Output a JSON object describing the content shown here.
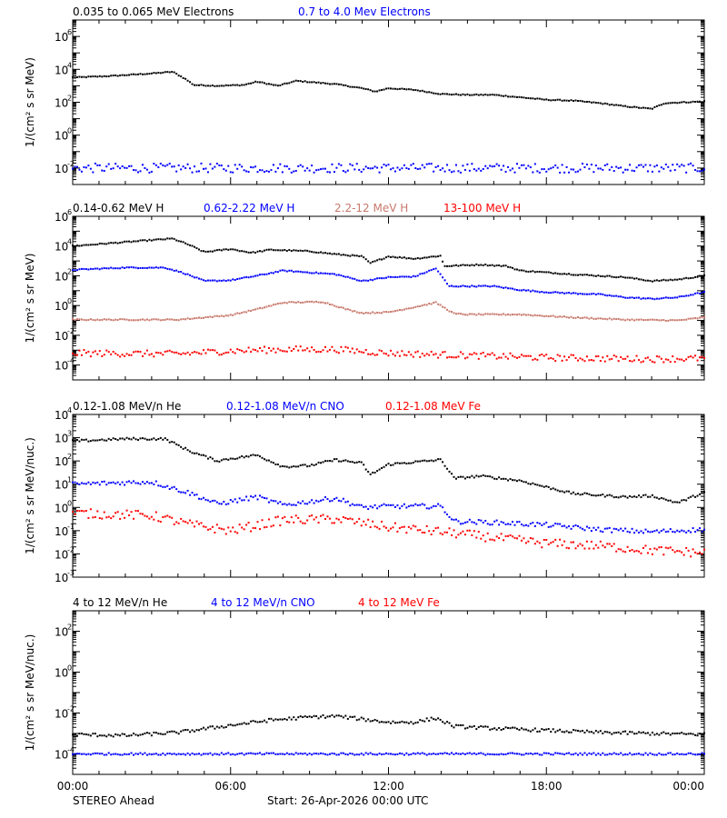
{
  "footer": {
    "spacecraft": "STEREO Ahead",
    "start": "Start: 26-Apr-2026 00:00 UTC"
  },
  "x_axis": {
    "range_hours": [
      0,
      24
    ],
    "ticks": [
      {
        "hour": 0,
        "label": "00:00"
      },
      {
        "hour": 6,
        "label": "06:00"
      },
      {
        "hour": 12,
        "label": "12:00"
      },
      {
        "hour": 18,
        "label": "18:00"
      },
      {
        "hour": 24,
        "label": "00:00"
      }
    ]
  },
  "colors": {
    "black": "#000000",
    "blue": "#0000ff",
    "tan": "#c8786c",
    "red": "#ff0000"
  },
  "chart_data": [
    {
      "type": "scatter",
      "ylabel": "1/(cm² s sr MeV)",
      "yscale": "log",
      "ylim_exp": [
        -3,
        7
      ],
      "tick_labels": [
        {
          "exp": 6,
          "label": "6"
        },
        {
          "exp": 4,
          "label": "4"
        },
        {
          "exp": 2,
          "label": "2"
        },
        {
          "exp": 0,
          "label": "0"
        },
        {
          "exp": -2,
          "label": "-2"
        }
      ],
      "series": [
        {
          "name": "0.035 to 0.065 MeV Electrons",
          "color": "#000000",
          "noise": 0.03,
          "points": [
            [
              0,
              3.5
            ],
            [
              1.5,
              3.6
            ],
            [
              3,
              3.75
            ],
            [
              3.8,
              3.85
            ],
            [
              4.3,
              3.4
            ],
            [
              4.6,
              3.05
            ],
            [
              5.5,
              3.0
            ],
            [
              6.5,
              3.05
            ],
            [
              7,
              3.25
            ],
            [
              7.8,
              3.0
            ],
            [
              8.5,
              3.3
            ],
            [
              10,
              3.1
            ],
            [
              11,
              2.85
            ],
            [
              11.5,
              2.65
            ],
            [
              12,
              2.85
            ],
            [
              13,
              2.75
            ],
            [
              14,
              2.5
            ],
            [
              15,
              2.45
            ],
            [
              16,
              2.45
            ],
            [
              17,
              2.3
            ],
            [
              18,
              2.15
            ],
            [
              19,
              2.1
            ],
            [
              20,
              1.95
            ],
            [
              21,
              1.75
            ],
            [
              22,
              1.6
            ],
            [
              22.5,
              1.95
            ],
            [
              24,
              2.05
            ]
          ]
        },
        {
          "name": "0.7 to 4.0 Mev Electrons",
          "color": "#0000ff",
          "noise": 0.28,
          "points": [
            [
              0,
              -2.0
            ],
            [
              24,
              -2.0
            ]
          ]
        }
      ]
    },
    {
      "type": "scatter",
      "ylabel": "1/(cm² s sr MeV)",
      "yscale": "log",
      "ylim_exp": [
        -5,
        6
      ],
      "tick_labels": [
        {
          "exp": 6,
          "label": "6"
        },
        {
          "exp": 4,
          "label": "4"
        },
        {
          "exp": 2,
          "label": "2"
        },
        {
          "exp": 0,
          "label": "0"
        },
        {
          "exp": -2,
          "label": "-2"
        },
        {
          "exp": -4,
          "label": "-4"
        }
      ],
      "series": [
        {
          "name": "0.14-0.62 MeV H",
          "color": "#000000",
          "noise": 0.04,
          "points": [
            [
              0,
              4.0
            ],
            [
              1.5,
              4.2
            ],
            [
              3,
              4.4
            ],
            [
              3.8,
              4.5
            ],
            [
              4.4,
              4.1
            ],
            [
              5,
              3.6
            ],
            [
              6,
              3.8
            ],
            [
              6.8,
              3.55
            ],
            [
              7.5,
              3.75
            ],
            [
              9,
              3.65
            ],
            [
              10,
              3.45
            ],
            [
              11,
              3.3
            ],
            [
              11.3,
              2.85
            ],
            [
              12,
              3.3
            ],
            [
              13,
              3.15
            ],
            [
              14,
              3.35
            ],
            [
              14.1,
              2.65
            ],
            [
              15.5,
              2.75
            ],
            [
              16.5,
              2.65
            ],
            [
              17,
              2.35
            ],
            [
              19,
              2.1
            ],
            [
              21,
              1.9
            ],
            [
              22,
              1.65
            ],
            [
              23,
              1.75
            ],
            [
              24,
              2.0
            ]
          ]
        },
        {
          "name": "0.62-2.22 MeV H",
          "color": "#0000ff",
          "noise": 0.04,
          "points": [
            [
              0,
              2.4
            ],
            [
              2,
              2.55
            ],
            [
              3.5,
              2.55
            ],
            [
              4.2,
              2.2
            ],
            [
              5,
              1.65
            ],
            [
              6,
              1.7
            ],
            [
              7,
              2.0
            ],
            [
              8,
              2.35
            ],
            [
              10,
              2.1
            ],
            [
              11,
              1.65
            ],
            [
              12,
              1.9
            ],
            [
              13,
              1.95
            ],
            [
              13.8,
              2.5
            ],
            [
              14.3,
              1.3
            ],
            [
              16,
              1.3
            ],
            [
              17,
              1.05
            ],
            [
              18,
              0.9
            ],
            [
              20,
              0.75
            ],
            [
              21,
              0.55
            ],
            [
              22,
              0.45
            ],
            [
              23,
              0.55
            ],
            [
              24,
              0.9
            ]
          ]
        },
        {
          "name": "2.2-12 MeV H",
          "color": "#c8786c",
          "noise": 0.04,
          "points": [
            [
              0,
              -0.95
            ],
            [
              4,
              -0.95
            ],
            [
              5,
              -0.8
            ],
            [
              6,
              -0.65
            ],
            [
              7,
              -0.25
            ],
            [
              8,
              0.2
            ],
            [
              9.5,
              0.25
            ],
            [
              10.5,
              -0.3
            ],
            [
              11,
              -0.5
            ],
            [
              12,
              -0.45
            ],
            [
              13,
              -0.1
            ],
            [
              13.8,
              0.2
            ],
            [
              14.5,
              -0.55
            ],
            [
              15,
              -0.6
            ],
            [
              17,
              -0.6
            ],
            [
              19,
              -0.8
            ],
            [
              21,
              -0.95
            ],
            [
              23,
              -1.0
            ],
            [
              24,
              -0.8
            ]
          ]
        },
        {
          "name": "13-100 MeV H",
          "color": "#ff0000",
          "noise": 0.22,
          "points": [
            [
              0,
              -3.2
            ],
            [
              4,
              -3.25
            ],
            [
              6,
              -3.05
            ],
            [
              8,
              -2.95
            ],
            [
              10,
              -2.95
            ],
            [
              12,
              -3.2
            ],
            [
              14,
              -3.3
            ],
            [
              16,
              -3.4
            ],
            [
              18,
              -3.5
            ],
            [
              20,
              -3.55
            ],
            [
              22,
              -3.6
            ],
            [
              24,
              -3.55
            ]
          ]
        }
      ]
    },
    {
      "type": "scatter",
      "ylabel": "1/(cm² s sr MeV/nuc.)",
      "yscale": "log",
      "ylim_exp": [
        -3,
        4
      ],
      "tick_labels": [
        {
          "exp": 4,
          "label": "4"
        },
        {
          "exp": 3,
          "label": "3"
        },
        {
          "exp": 2,
          "label": "2"
        },
        {
          "exp": 1,
          "label": "1"
        },
        {
          "exp": 0,
          "label": "0"
        },
        {
          "exp": -1,
          "label": "-1"
        },
        {
          "exp": -2,
          "label": "-2"
        },
        {
          "exp": -3,
          "label": "-3"
        }
      ],
      "series": [
        {
          "name": "0.12-1.08 MeV/n He",
          "color": "#000000",
          "noise": 0.05,
          "points": [
            [
              0,
              2.85
            ],
            [
              2,
              2.95
            ],
            [
              3.5,
              2.95
            ],
            [
              4.5,
              2.4
            ],
            [
              5.5,
              2.0
            ],
            [
              6,
              2.1
            ],
            [
              7,
              2.25
            ],
            [
              7.5,
              2.0
            ],
            [
              8,
              1.75
            ],
            [
              9,
              1.8
            ],
            [
              10,
              2.05
            ],
            [
              11,
              1.9
            ],
            [
              11.3,
              1.4
            ],
            [
              12,
              1.85
            ],
            [
              13,
              1.95
            ],
            [
              14,
              2.05
            ],
            [
              14.5,
              1.25
            ],
            [
              15.5,
              1.35
            ],
            [
              17,
              1.15
            ],
            [
              19,
              0.6
            ],
            [
              21,
              0.45
            ],
            [
              22,
              0.5
            ],
            [
              23,
              0.2
            ],
            [
              24,
              0.65
            ]
          ]
        },
        {
          "name": "0.12-1.08 MeV/n CNO",
          "color": "#0000ff",
          "noise": 0.1,
          "points": [
            [
              0,
              1.0
            ],
            [
              3,
              1.1
            ],
            [
              4.5,
              0.6
            ],
            [
              5.5,
              0.15
            ],
            [
              7,
              0.45
            ],
            [
              8,
              0.1
            ],
            [
              10,
              0.4
            ],
            [
              11,
              0.0
            ],
            [
              12,
              0.05
            ],
            [
              14,
              0.05
            ],
            [
              14.5,
              -0.6
            ],
            [
              16,
              -0.65
            ],
            [
              18,
              -0.75
            ],
            [
              20,
              -0.95
            ],
            [
              22,
              -1.05
            ],
            [
              24,
              -0.95
            ]
          ]
        },
        {
          "name": "0.12-1.08 MeV Fe",
          "color": "#ff0000",
          "noise": 0.2,
          "points": [
            [
              0,
              -0.25
            ],
            [
              3,
              -0.35
            ],
            [
              4.5,
              -0.75
            ],
            [
              6,
              -1.0
            ],
            [
              8,
              -0.55
            ],
            [
              10,
              -0.5
            ],
            [
              12,
              -0.85
            ],
            [
              14,
              -1.05
            ],
            [
              16,
              -1.3
            ],
            [
              18,
              -1.55
            ],
            [
              20,
              -1.65
            ],
            [
              22,
              -1.85
            ],
            [
              24,
              -1.95
            ]
          ]
        }
      ]
    },
    {
      "type": "scatter",
      "ylabel": "1/(cm² s sr MeV/nuc.)",
      "yscale": "log",
      "ylim_exp": [
        -5,
        3
      ],
      "tick_labels": [
        {
          "exp": 2,
          "label": "2"
        },
        {
          "exp": 0,
          "label": "0"
        },
        {
          "exp": -2,
          "label": "-2"
        },
        {
          "exp": -4,
          "label": "-4"
        }
      ],
      "series": [
        {
          "name": "4 to 12 MeV/n He",
          "color": "#000000",
          "noise": 0.08,
          "points": [
            [
              0,
              -3.05
            ],
            [
              2,
              -3.1
            ],
            [
              4,
              -2.95
            ],
            [
              6,
              -2.6
            ],
            [
              7.5,
              -2.35
            ],
            [
              9,
              -2.2
            ],
            [
              10,
              -2.15
            ],
            [
              11,
              -2.3
            ],
            [
              12,
              -2.45
            ],
            [
              13,
              -2.45
            ],
            [
              13.8,
              -2.25
            ],
            [
              14.5,
              -2.65
            ],
            [
              16,
              -2.75
            ],
            [
              18,
              -2.85
            ],
            [
              20,
              -2.95
            ],
            [
              22,
              -3.0
            ],
            [
              24,
              -3.05
            ]
          ]
        },
        {
          "name": "4 to 12 MeV/n CNO",
          "color": "#0000ff",
          "noise": 0.05,
          "points": [
            [
              0,
              -4.0
            ],
            [
              24,
              -4.0
            ]
          ]
        },
        {
          "name": "4 to 12 MeV Fe",
          "color": "#ff0000",
          "noise": 0.0,
          "points": []
        }
      ]
    }
  ]
}
